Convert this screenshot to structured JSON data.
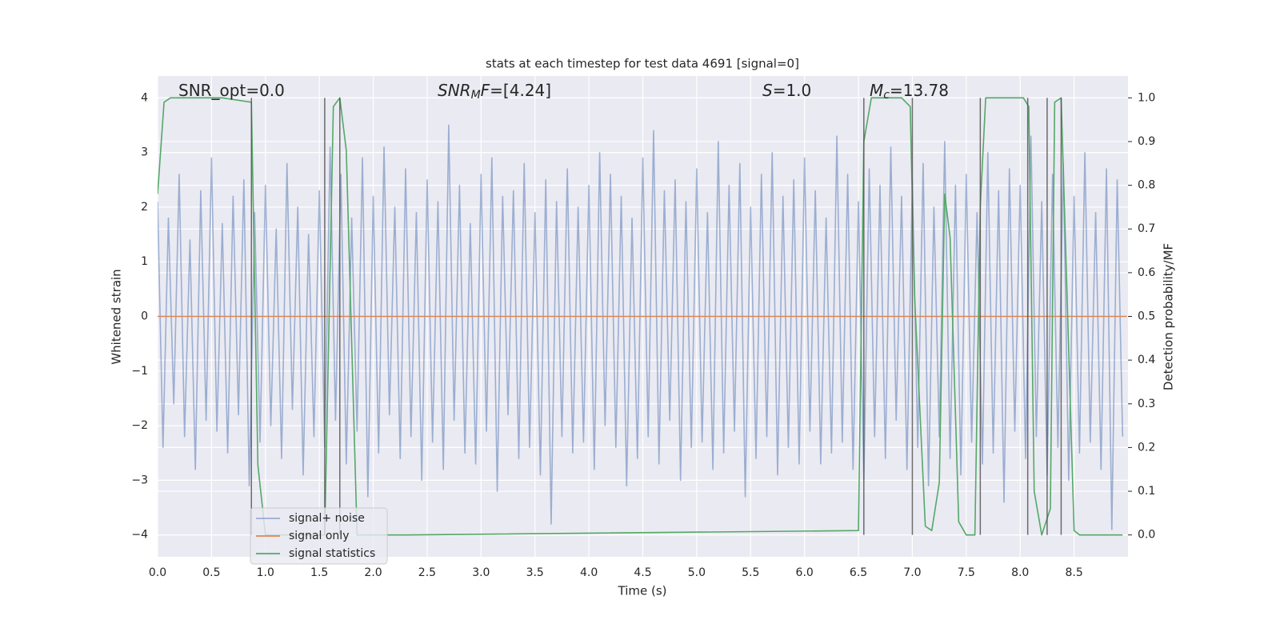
{
  "chart_data": {
    "type": "line",
    "title": "stats at each timestep for test data 4691 [signal=0]",
    "xlabel": "Time (s)",
    "ylabel": "Whitened strain",
    "y2label": "Detection probability/MF",
    "xlim": [
      0,
      9.0
    ],
    "ylim": [
      -4.4,
      4.4
    ],
    "y2lim": [
      -0.05,
      1.05
    ],
    "xticks": [
      {
        "value": 0,
        "label": "0.0"
      },
      0.5,
      {
        "value": 1,
        "label": "1.0"
      },
      1.5,
      {
        "value": 2,
        "label": "2.0"
      },
      2.5,
      {
        "value": 3,
        "label": "3.0"
      },
      3.5,
      {
        "value": 4,
        "label": "4.0"
      },
      4.5,
      {
        "value": 5,
        "label": "5.0"
      },
      5.5,
      {
        "value": 6,
        "label": "6.0"
      },
      6.5,
      {
        "value": 7,
        "label": "7.0"
      },
      7.5,
      {
        "value": 8,
        "label": "8.0"
      },
      8.5
    ],
    "yticks": [
      {
        "value": -4,
        "label": "−4"
      },
      {
        "value": -3,
        "label": "−3"
      },
      {
        "value": -2,
        "label": "−2"
      },
      {
        "value": -1,
        "label": "−1"
      },
      0,
      1,
      2,
      3,
      4
    ],
    "y2ticks": [
      {
        "value": 0,
        "label": "0.0"
      },
      0.1,
      0.2,
      0.3,
      0.4,
      0.5,
      0.6,
      0.7,
      0.8,
      0.9,
      {
        "value": 1,
        "label": "1.0"
      }
    ],
    "grid": true,
    "legend": "lower left",
    "series": [
      {
        "name": "signal+ noise",
        "color": "#4c72b0",
        "opacity": 0.5,
        "x": [
          0,
          0.05,
          0.1,
          0.15,
          0.2,
          0.25,
          0.3,
          0.35,
          0.4,
          0.45,
          0.5,
          0.55,
          0.6,
          0.65,
          0.7,
          0.75,
          0.8,
          0.85,
          0.9,
          0.95,
          1,
          1.05,
          1.1,
          1.15,
          1.2,
          1.25,
          1.3,
          1.35,
          1.4,
          1.45,
          1.5,
          1.55,
          1.6,
          1.65,
          1.7,
          1.75,
          1.8,
          1.85,
          1.9,
          1.95,
          2,
          2.05,
          2.1,
          2.15,
          2.2,
          2.25,
          2.3,
          2.35,
          2.4,
          2.45,
          2.5,
          2.55,
          2.6,
          2.65,
          2.7,
          2.75,
          2.8,
          2.85,
          2.9,
          2.95,
          3,
          3.05,
          3.1,
          3.15,
          3.2,
          3.25,
          3.3,
          3.35,
          3.4,
          3.45,
          3.5,
          3.55,
          3.6,
          3.65,
          3.7,
          3.75,
          3.8,
          3.85,
          3.9,
          3.95,
          4,
          4.05,
          4.1,
          4.15,
          4.2,
          4.25,
          4.3,
          4.35,
          4.4,
          4.45,
          4.5,
          4.55,
          4.6,
          4.65,
          4.7,
          4.75,
          4.8,
          4.85,
          4.9,
          4.95,
          5,
          5.05,
          5.1,
          5.15,
          5.2,
          5.25,
          5.3,
          5.35,
          5.4,
          5.45,
          5.5,
          5.55,
          5.6,
          5.65,
          5.7,
          5.75,
          5.8,
          5.85,
          5.9,
          5.95,
          6,
          6.05,
          6.1,
          6.15,
          6.2,
          6.25,
          6.3,
          6.35,
          6.4,
          6.45,
          6.5,
          6.55,
          6.6,
          6.65,
          6.7,
          6.75,
          6.8,
          6.85,
          6.9,
          6.95,
          7,
          7.05,
          7.1,
          7.15,
          7.2,
          7.25,
          7.3,
          7.35,
          7.4,
          7.45,
          7.5,
          7.55,
          7.6,
          7.65,
          7.7,
          7.75,
          7.8,
          7.85,
          7.9,
          7.95,
          8,
          8.05,
          8.1,
          8.15,
          8.2,
          8.25,
          8.3,
          8.35,
          8.4,
          8.45,
          8.5,
          8.55,
          8.6,
          8.65,
          8.7,
          8.75,
          8.8,
          8.85,
          8.9,
          8.95
        ],
        "values": [
          2.1,
          -2.4,
          1.8,
          -1.6,
          2.6,
          -2.2,
          1.4,
          -2.8,
          2.3,
          -1.9,
          2.9,
          -2.1,
          1.7,
          -2.5,
          2.2,
          -1.8,
          2.5,
          -3.1,
          1.9,
          -2.3,
          2.4,
          -2.0,
          1.6,
          -2.6,
          2.8,
          -1.7,
          2.0,
          -2.9,
          1.5,
          -2.2,
          2.3,
          -2.4,
          3.1,
          -1.9,
          2.6,
          -2.7,
          1.8,
          -2.1,
          2.9,
          -3.3,
          2.2,
          -2.5,
          3.1,
          -1.8,
          2.0,
          -2.6,
          2.7,
          -2.2,
          1.9,
          -3.0,
          2.5,
          -2.3,
          2.1,
          -2.8,
          3.5,
          -1.9,
          2.4,
          -2.5,
          1.7,
          -2.7,
          2.6,
          -2.1,
          2.9,
          -3.2,
          2.2,
          -1.8,
          2.3,
          -2.6,
          2.8,
          -2.4,
          1.9,
          -2.9,
          2.5,
          -3.8,
          2.1,
          -2.2,
          2.7,
          -2.5,
          2.0,
          -2.3,
          2.4,
          -2.8,
          3.0,
          -2.0,
          2.6,
          -2.4,
          2.2,
          -3.1,
          1.8,
          -2.6,
          2.9,
          -2.2,
          3.4,
          -2.7,
          2.3,
          -1.9,
          2.5,
          -3.0,
          2.1,
          -2.4,
          2.7,
          -2.3,
          1.9,
          -2.8,
          3.2,
          -2.5,
          2.4,
          -2.1,
          2.8,
          -3.3,
          2.0,
          -2.6,
          2.6,
          -2.2,
          3.0,
          -2.9,
          2.2,
          -2.4,
          2.5,
          -2.7,
          2.9,
          -2.1,
          2.3,
          -2.7,
          1.8,
          -2.5,
          3.3,
          -2.3,
          2.6,
          -2.8,
          2.1,
          -3.0,
          2.7,
          -2.2,
          2.4,
          -2.6,
          3.1,
          -1.9,
          2.2,
          -2.8,
          2.5,
          -2.4,
          2.8,
          -3.1,
          2.0,
          -2.2,
          3.2,
          -2.6,
          2.4,
          -2.9,
          2.6,
          -2.3,
          1.9,
          -2.7,
          3.0,
          -2.5,
          2.3,
          -3.4,
          2.7,
          -2.1,
          2.4,
          -2.6,
          3.3,
          -2.2,
          2.1,
          -2.9,
          2.6,
          -2.4,
          2.8,
          -3.0,
          2.2,
          -2.5,
          3.0,
          -2.3,
          1.9,
          -2.8,
          2.7,
          -3.9,
          2.5,
          -2.2
        ]
      },
      {
        "name": "signal only",
        "color": "#dd8452",
        "x": [
          0,
          8.99
        ],
        "values": [
          0,
          0
        ]
      },
      {
        "name": "signal statistics",
        "color": "#55a868",
        "axis": "y2",
        "x": [
          0,
          0.06,
          0.12,
          0.3,
          0.6,
          0.87,
          0.93,
          1.0,
          1.55,
          1.63,
          1.69,
          1.75,
          1.85,
          2.3,
          6.5,
          6.55,
          6.62,
          6.9,
          6.98,
          7.02,
          7.12,
          7.18,
          7.25,
          7.3,
          7.35,
          7.43,
          7.5,
          7.58,
          7.63,
          7.68,
          8.03,
          8.08,
          8.13,
          8.2,
          8.28,
          8.32,
          8.38,
          8.5,
          8.55,
          8.95
        ],
        "values": [
          0.78,
          0.99,
          1.0,
          1.0,
          1.0,
          0.99,
          0.16,
          0.0,
          0.0,
          0.98,
          1.0,
          0.88,
          0.0,
          0.0,
          0.01,
          0.9,
          1.0,
          1.0,
          0.98,
          0.55,
          0.02,
          0.01,
          0.12,
          0.78,
          0.68,
          0.03,
          0.0,
          0.0,
          0.75,
          1.0,
          1.0,
          0.98,
          0.1,
          0.0,
          0.06,
          0.99,
          1.0,
          0.01,
          0.0,
          0.0
        ]
      }
    ],
    "vlines": {
      "color": "#555555",
      "axis": "y2",
      "ymin": 0,
      "ymax": 1,
      "x": [
        0.87,
        1.55,
        1.69,
        6.55,
        7.0,
        7.63,
        8.07,
        8.25,
        8.38
      ]
    },
    "annotations": [
      {
        "parts": [
          {
            "text": "SNR_opt=0.0"
          }
        ]
      },
      {
        "parts": [
          {
            "text": "SNR",
            "italic": true
          },
          {
            "text": "M",
            "italic": true,
            "sub": true
          },
          {
            "text": "F",
            "italic": true
          },
          {
            "text": "=[4.24]"
          }
        ]
      },
      {
        "parts": [
          {
            "text": "S",
            "italic": true
          },
          {
            "text": "=1.0"
          }
        ]
      },
      {
        "parts": [
          {
            "text": "M",
            "italic": true
          },
          {
            "text": "c",
            "italic": true,
            "sub": true
          },
          {
            "text": "=13.78"
          }
        ]
      }
    ]
  }
}
